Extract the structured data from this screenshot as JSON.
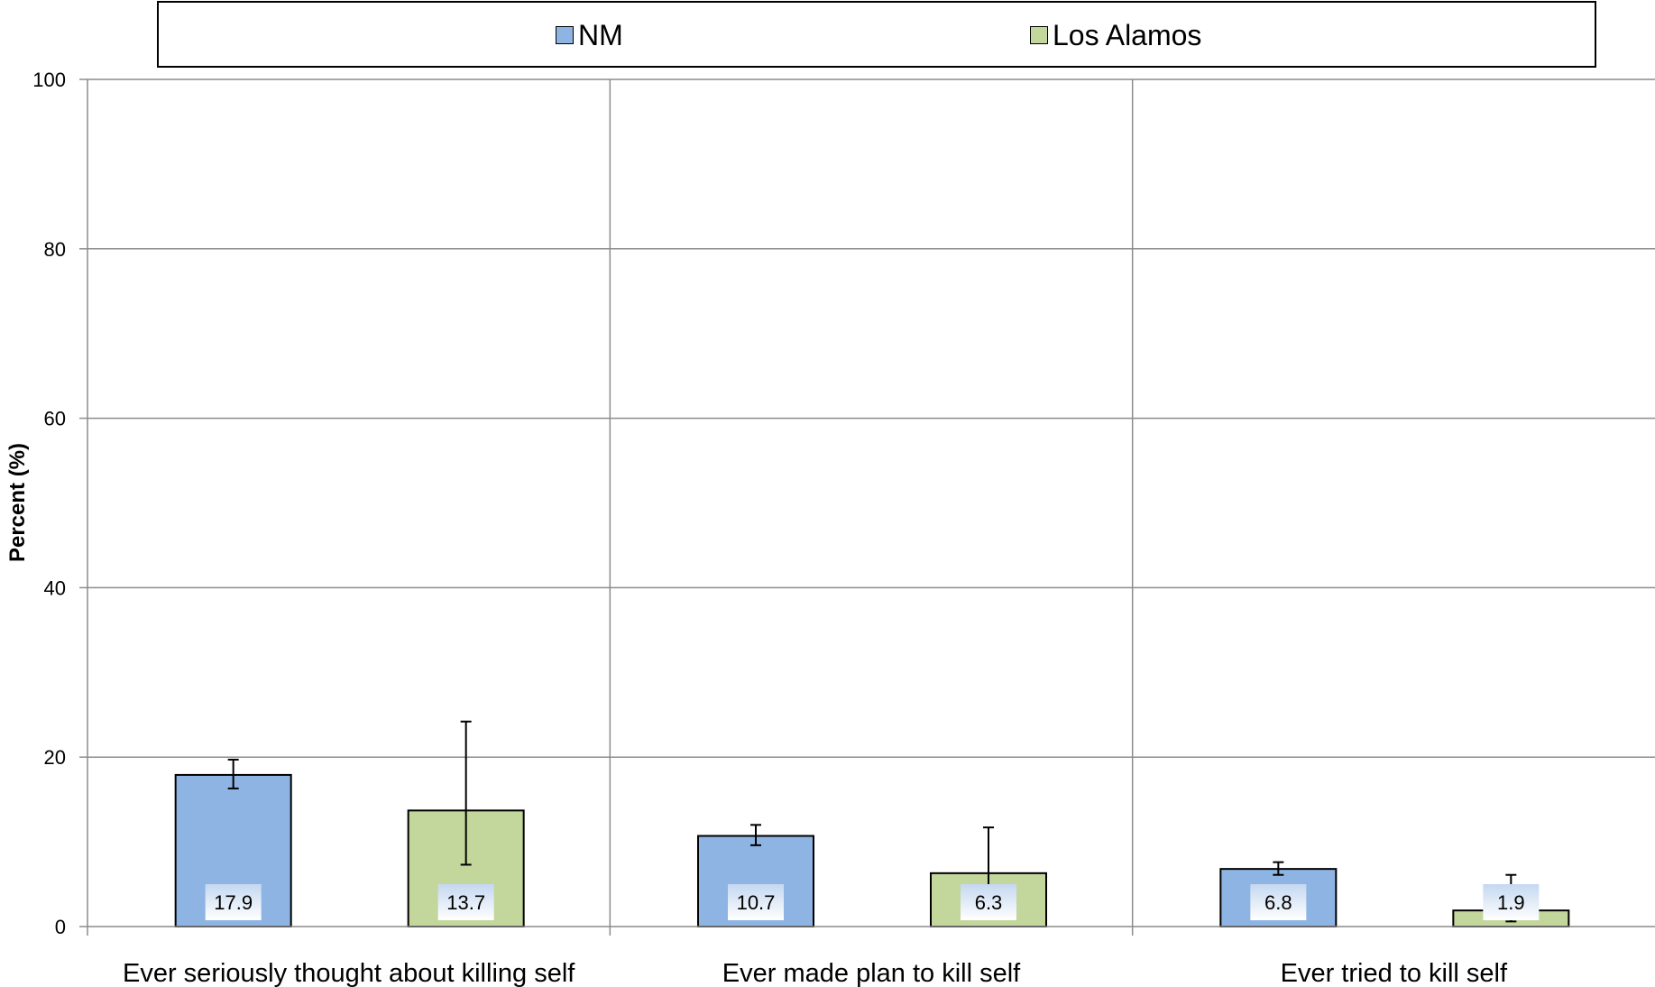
{
  "chart_data": {
    "type": "bar",
    "categories": [
      "Ever seriously thought about killing self",
      "Ever made plan to kill self",
      "Ever tried to kill self"
    ],
    "series": [
      {
        "name": "NM",
        "color": "#8EB4E3",
        "values": [
          17.9,
          10.7,
          6.8
        ],
        "error_low": [
          16.3,
          9.6,
          6.1
        ],
        "error_high": [
          19.7,
          12.0,
          7.6
        ]
      },
      {
        "name": "Los Alamos",
        "color": "#C3D69B",
        "values": [
          13.7,
          6.3,
          1.9
        ],
        "error_low": [
          7.3,
          2.8,
          0.6
        ],
        "error_high": [
          24.2,
          11.7,
          6.1
        ]
      }
    ],
    "xlabel": "",
    "ylabel": "Percent (%)",
    "ylim": [
      0,
      100
    ],
    "yticks": [
      0,
      20,
      40,
      60,
      80,
      100
    ],
    "grid": true,
    "legend_position": "top",
    "data_labels": true,
    "error_bars": true
  }
}
